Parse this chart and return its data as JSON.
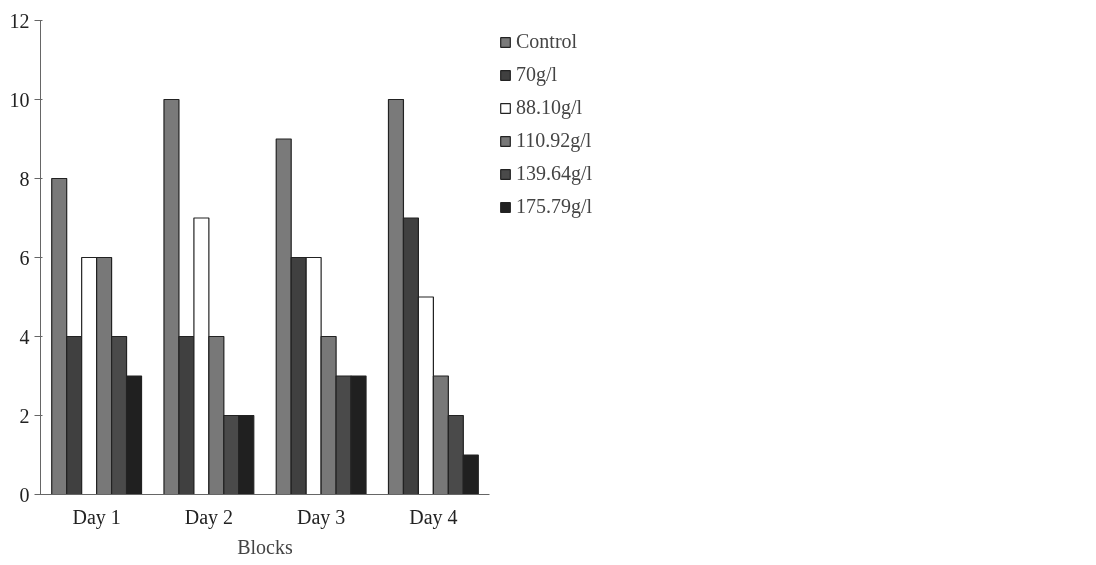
{
  "chart_data": {
    "type": "bar",
    "xlabel": "Blocks",
    "categories": [
      "Day 1",
      "Day 2",
      "Day 3",
      "Day 4"
    ],
    "series": [
      {
        "name": "Control",
        "color": "#7a7a7a",
        "values": [
          8,
          10,
          9,
          10
        ]
      },
      {
        "name": "70g/l",
        "color": "#404040",
        "values": [
          4,
          4,
          6,
          7
        ]
      },
      {
        "name": "88.10g/l",
        "color": "#ffffff",
        "values": [
          6,
          7,
          6,
          5
        ]
      },
      {
        "name": "110.92g/l",
        "color": "#787878",
        "values": [
          6,
          4,
          4,
          3
        ]
      },
      {
        "name": "139.64g/l",
        "color": "#4a4a4a",
        "values": [
          4,
          2,
          3,
          2
        ]
      },
      {
        "name": "175.79g/l",
        "color": "#202020",
        "values": [
          3,
          2,
          3,
          1
        ]
      }
    ],
    "ylim": [
      0,
      12
    ],
    "yticks": [
      0,
      2,
      4,
      6,
      8,
      10,
      12
    ],
    "grid": false,
    "legend": "right"
  }
}
